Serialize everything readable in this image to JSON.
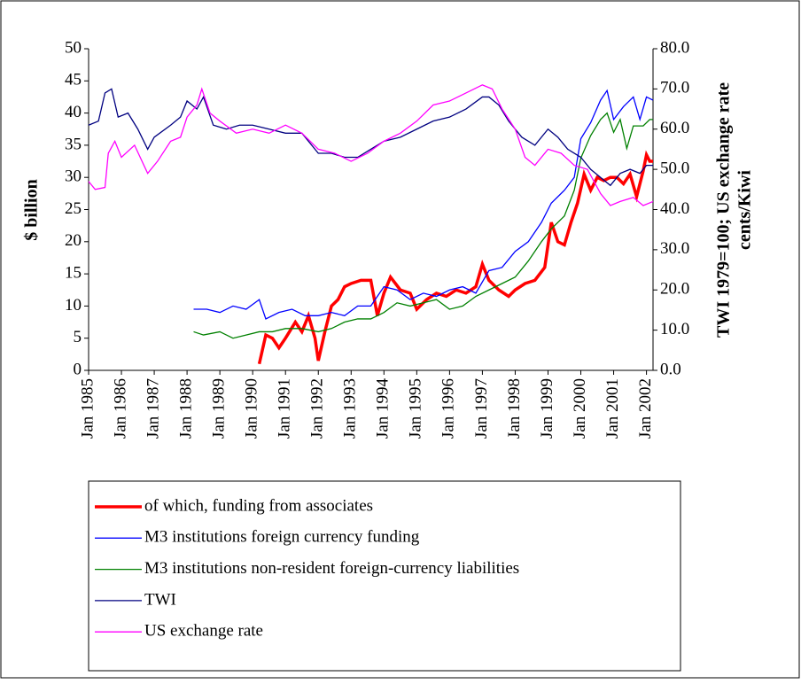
{
  "chart_data": {
    "type": "line",
    "y_label": "$ billion",
    "y2_label": [
      "TWI 1979=100; US exchange rate",
      "cents/Kiwi"
    ],
    "xlim": [
      1985,
      2002.2
    ],
    "xticks": [
      {
        "value": 1985,
        "label": "Jan 1985"
      },
      {
        "value": 1986,
        "label": "Jan 1986"
      },
      {
        "value": 1987,
        "label": "Jan 1987"
      },
      {
        "value": 1988,
        "label": "Jan 1988"
      },
      {
        "value": 1989,
        "label": "Jan 1989"
      },
      {
        "value": 1990,
        "label": "Jan 1990"
      },
      {
        "value": 1991,
        "label": "Jan 1991"
      },
      {
        "value": 1992,
        "label": "Jan 1992"
      },
      {
        "value": 1993,
        "label": "Jan 1993"
      },
      {
        "value": 1994,
        "label": "Jan 1994"
      },
      {
        "value": 1995,
        "label": "Jan 1995"
      },
      {
        "value": 1996,
        "label": "Jan 1996"
      },
      {
        "value": 1997,
        "label": "Jan 1997"
      },
      {
        "value": 1998,
        "label": "Jan 1998"
      },
      {
        "value": 1999,
        "label": "Jan 1999"
      },
      {
        "value": 2000,
        "label": "Jan 2000"
      },
      {
        "value": 2001,
        "label": "Jan 2001"
      },
      {
        "value": 2002,
        "label": "Jan 2002"
      }
    ],
    "ylim": [
      0,
      50
    ],
    "yticks": [
      0,
      5,
      10,
      15,
      20,
      25,
      30,
      35,
      40,
      45,
      50
    ],
    "y2lim": [
      0,
      80
    ],
    "y2ticks": [
      {
        "value": 0,
        "label": "0.0"
      },
      {
        "value": 10,
        "label": "10.0"
      },
      {
        "value": 20,
        "label": "20.0"
      },
      {
        "value": 30,
        "label": "30.0"
      },
      {
        "value": 40,
        "label": "40.0"
      },
      {
        "value": 50,
        "label": "50.0"
      },
      {
        "value": 60,
        "label": "60.0"
      },
      {
        "value": 70,
        "label": "70.0"
      },
      {
        "value": 80,
        "label": "80.0"
      }
    ],
    "series": [
      {
        "name": "of which, funding from associates",
        "color": "#ff0000",
        "line_width": 3.5,
        "x": [
          1990.2,
          1990.4,
          1990.6,
          1990.8,
          1991.0,
          1991.3,
          1991.5,
          1991.7,
          1991.9,
          1992.0,
          1992.2,
          1992.4,
          1992.6,
          1992.8,
          1993.0,
          1993.3,
          1993.6,
          1993.8,
          1994.0,
          1994.2,
          1994.5,
          1994.8,
          1995.0,
          1995.3,
          1995.6,
          1995.9,
          1996.2,
          1996.5,
          1996.8,
          1997.0,
          1997.2,
          1997.5,
          1997.8,
          1998.0,
          1998.3,
          1998.6,
          1998.9,
          1999.1,
          1999.3,
          1999.5,
          1999.7,
          1999.9,
          2000.1,
          2000.3,
          2000.5,
          2000.7,
          2000.9,
          2001.1,
          2001.3,
          2001.5,
          2001.7,
          2001.9,
          2002.0,
          2002.1,
          2002.2
        ],
        "values": [
          1,
          5.5,
          5,
          3.5,
          5,
          7.5,
          6,
          8.5,
          5,
          1.5,
          6,
          10,
          11,
          13,
          13.5,
          14,
          14,
          8.5,
          12,
          14.5,
          12.5,
          12,
          9.5,
          11,
          12,
          11.5,
          12.5,
          12,
          13,
          16.5,
          14,
          12.5,
          11.5,
          12.5,
          13.5,
          14,
          16,
          23,
          20,
          19.5,
          23,
          26,
          30.5,
          28,
          30,
          29.5,
          30,
          30,
          29,
          30.5,
          27,
          31,
          33.5,
          32.5,
          32.5
        ]
      },
      {
        "name": "M3 institutions foreign currency funding",
        "color": "#0000ff",
        "line_width": 1.3,
        "x": [
          1988.2,
          1988.6,
          1989.0,
          1989.4,
          1989.8,
          1990.2,
          1990.4,
          1990.8,
          1991.2,
          1991.6,
          1992.0,
          1992.4,
          1992.8,
          1993.2,
          1993.6,
          1994.0,
          1994.4,
          1994.8,
          1995.2,
          1995.6,
          1996.0,
          1996.4,
          1996.8,
          1997.2,
          1997.6,
          1998.0,
          1998.4,
          1998.8,
          1999.1,
          1999.5,
          1999.8,
          2000.0,
          2000.3,
          2000.6,
          2000.8,
          2001.0,
          2001.3,
          2001.6,
          2001.8,
          2002.0,
          2002.2
        ],
        "values": [
          9.5,
          9.5,
          9,
          10,
          9.5,
          11,
          8,
          9,
          9.5,
          8.5,
          8.5,
          9,
          8.5,
          10,
          10,
          13,
          12.5,
          11,
          12,
          11.5,
          12.5,
          13,
          12,
          15.5,
          16,
          18.5,
          20,
          23,
          26,
          28,
          30,
          36,
          38.5,
          42,
          43.5,
          39,
          41,
          42.5,
          39,
          42.5,
          42
        ]
      },
      {
        "name": "M3 institutions non-resident foreign-currency liabilities",
        "color": "#008000",
        "line_width": 1.3,
        "x": [
          1988.2,
          1988.5,
          1989.0,
          1989.4,
          1989.8,
          1990.2,
          1990.6,
          1991.0,
          1991.5,
          1992.0,
          1992.4,
          1992.8,
          1993.2,
          1993.6,
          1994.0,
          1994.4,
          1994.8,
          1995.2,
          1995.6,
          1996.0,
          1996.4,
          1996.8,
          1997.2,
          1997.6,
          1998.0,
          1998.4,
          1998.8,
          1999.1,
          1999.5,
          1999.8,
          2000.0,
          2000.3,
          2000.6,
          2000.8,
          2001.0,
          2001.2,
          2001.4,
          2001.6,
          2001.9,
          2002.1,
          2002.2
        ],
        "values": [
          6,
          5.5,
          6,
          5,
          5.5,
          6,
          6,
          6.5,
          6.5,
          6,
          6.5,
          7.5,
          8,
          8,
          9,
          10.5,
          10,
          10.5,
          11,
          9.5,
          10,
          11.5,
          12.5,
          13.5,
          14.5,
          17,
          20,
          22,
          24,
          28,
          33,
          36.5,
          39,
          40,
          37,
          39,
          34.5,
          38,
          38,
          39,
          39
        ]
      },
      {
        "name": "TWI",
        "color": "#000080",
        "line_width": 1.3,
        "axis": "y2",
        "x": [
          1985.0,
          1985.3,
          1985.5,
          1985.7,
          1985.9,
          1986.2,
          1986.5,
          1986.8,
          1987.0,
          1987.5,
          1987.8,
          1988.0,
          1988.3,
          1988.5,
          1988.8,
          1989.2,
          1989.6,
          1990.0,
          1990.5,
          1991.0,
          1991.5,
          1992.0,
          1992.4,
          1992.8,
          1993.2,
          1993.6,
          1994.0,
          1994.5,
          1995.0,
          1995.5,
          1996.0,
          1996.5,
          1997.0,
          1997.2,
          1997.5,
          1997.8,
          1998.2,
          1998.6,
          1999.0,
          1999.3,
          1999.6,
          2000.0,
          2000.3,
          2000.6,
          2000.9,
          2001.2,
          2001.5,
          2001.8,
          2002.0,
          2002.2
        ],
        "values": [
          61,
          62,
          69,
          70,
          63,
          64,
          60,
          55,
          58,
          61,
          63,
          67,
          65,
          68,
          61,
          60,
          61,
          61,
          60,
          59,
          59,
          54,
          54,
          53,
          53,
          55,
          57,
          58,
          60,
          62,
          63,
          65,
          68,
          68,
          66,
          62,
          58,
          56,
          60,
          58,
          55,
          53,
          50,
          48,
          46,
          49,
          50,
          49,
          51,
          51
        ]
      },
      {
        "name": "US exchange rate",
        "color": "#ff00ff",
        "line_width": 1.3,
        "axis": "y2",
        "x": [
          1985.0,
          1985.2,
          1985.5,
          1985.6,
          1985.8,
          1986.0,
          1986.4,
          1986.8,
          1987.1,
          1987.5,
          1987.8,
          1988.0,
          1988.3,
          1988.45,
          1988.7,
          1989.0,
          1989.5,
          1990.0,
          1990.5,
          1991.0,
          1991.5,
          1992.0,
          1992.5,
          1993.0,
          1993.5,
          1994.0,
          1994.5,
          1995.0,
          1995.5,
          1996.0,
          1996.5,
          1997.0,
          1997.3,
          1997.6,
          1998.0,
          1998.3,
          1998.6,
          1999.0,
          1999.4,
          1999.8,
          2000.2,
          2000.6,
          2000.9,
          2001.2,
          2001.6,
          2001.9,
          2002.2
        ],
        "values": [
          47,
          45,
          45.5,
          54,
          57,
          53,
          56,
          49,
          52,
          57,
          58,
          63,
          66,
          70,
          64,
          62,
          59,
          60,
          59,
          61,
          59,
          55,
          54,
          52,
          54,
          57,
          59,
          62,
          66,
          67,
          69,
          71,
          70,
          65,
          60,
          53,
          51,
          55,
          54,
          51,
          50,
          44,
          41,
          42,
          43,
          41,
          42
        ]
      }
    ]
  }
}
